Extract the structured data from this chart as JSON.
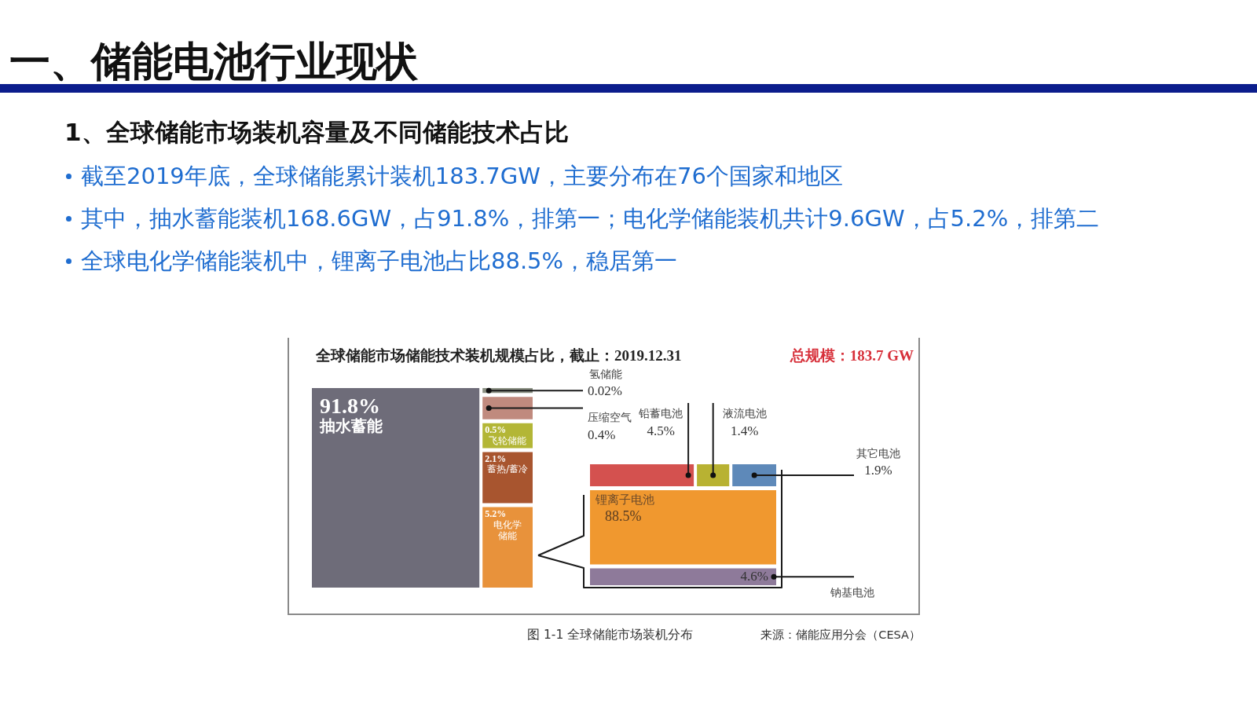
{
  "chart_data": [
    {
      "type": "other",
      "title": "一、储能电池行业现状",
      "subtitle": "1、全球储能市场装机容量及不同储能技术占比",
      "annotations": [
        "截至2019年底，全球储能累计装机183.7GW，主要分布在76个国家和地区",
        "其中，抽水蓄能装机168.6GW，占91.8%，排第一；电化学储能装机共计9.6GW，占5.2%，排第二",
        "全球电化学储能装机中，锂离子电池占比88.5%，稳居第一",
        "全球储能市场储能技术装机规模占比，截止：2019.12.31",
        "总规模：183.7 GW",
        "图 1-1 全球储能市场装机分布",
        "来源：储能应用分会（CESA）"
      ],
      "categories": [
        "抽水蓄能",
        "氢储能",
        "压缩空气",
        "飞轮储能",
        "蓄热/蓄冷",
        "电化学储能"
      ],
      "values": [
        91.8,
        0.02,
        0.4,
        0.5,
        2.1,
        5.2
      ],
      "value_labels": [
        "91.8%",
        "0.02%",
        "0.4%",
        "0.5%",
        "2.1%",
        "5.2%"
      ],
      "colors": [
        "#6e6c79",
        "#8c9184",
        "#c08a7e",
        "#b3b636",
        "#a8552f",
        "#e8923b"
      ]
    },
    {
      "type": "other",
      "categories": [
        "铅蓄电池",
        "液流电池",
        "其它电池",
        "锂离子电池",
        "钠基电池"
      ],
      "values": [
        4.5,
        1.4,
        1.9,
        88.5,
        4.6
      ],
      "value_labels": [
        "4.5%",
        "1.4%",
        "1.9%",
        "88.5%",
        "4.6%"
      ],
      "colors": [
        "#d4514f",
        "#b8b232",
        "#5e89b9",
        "#f0982f",
        "#8e7a9a"
      ]
    }
  ]
}
